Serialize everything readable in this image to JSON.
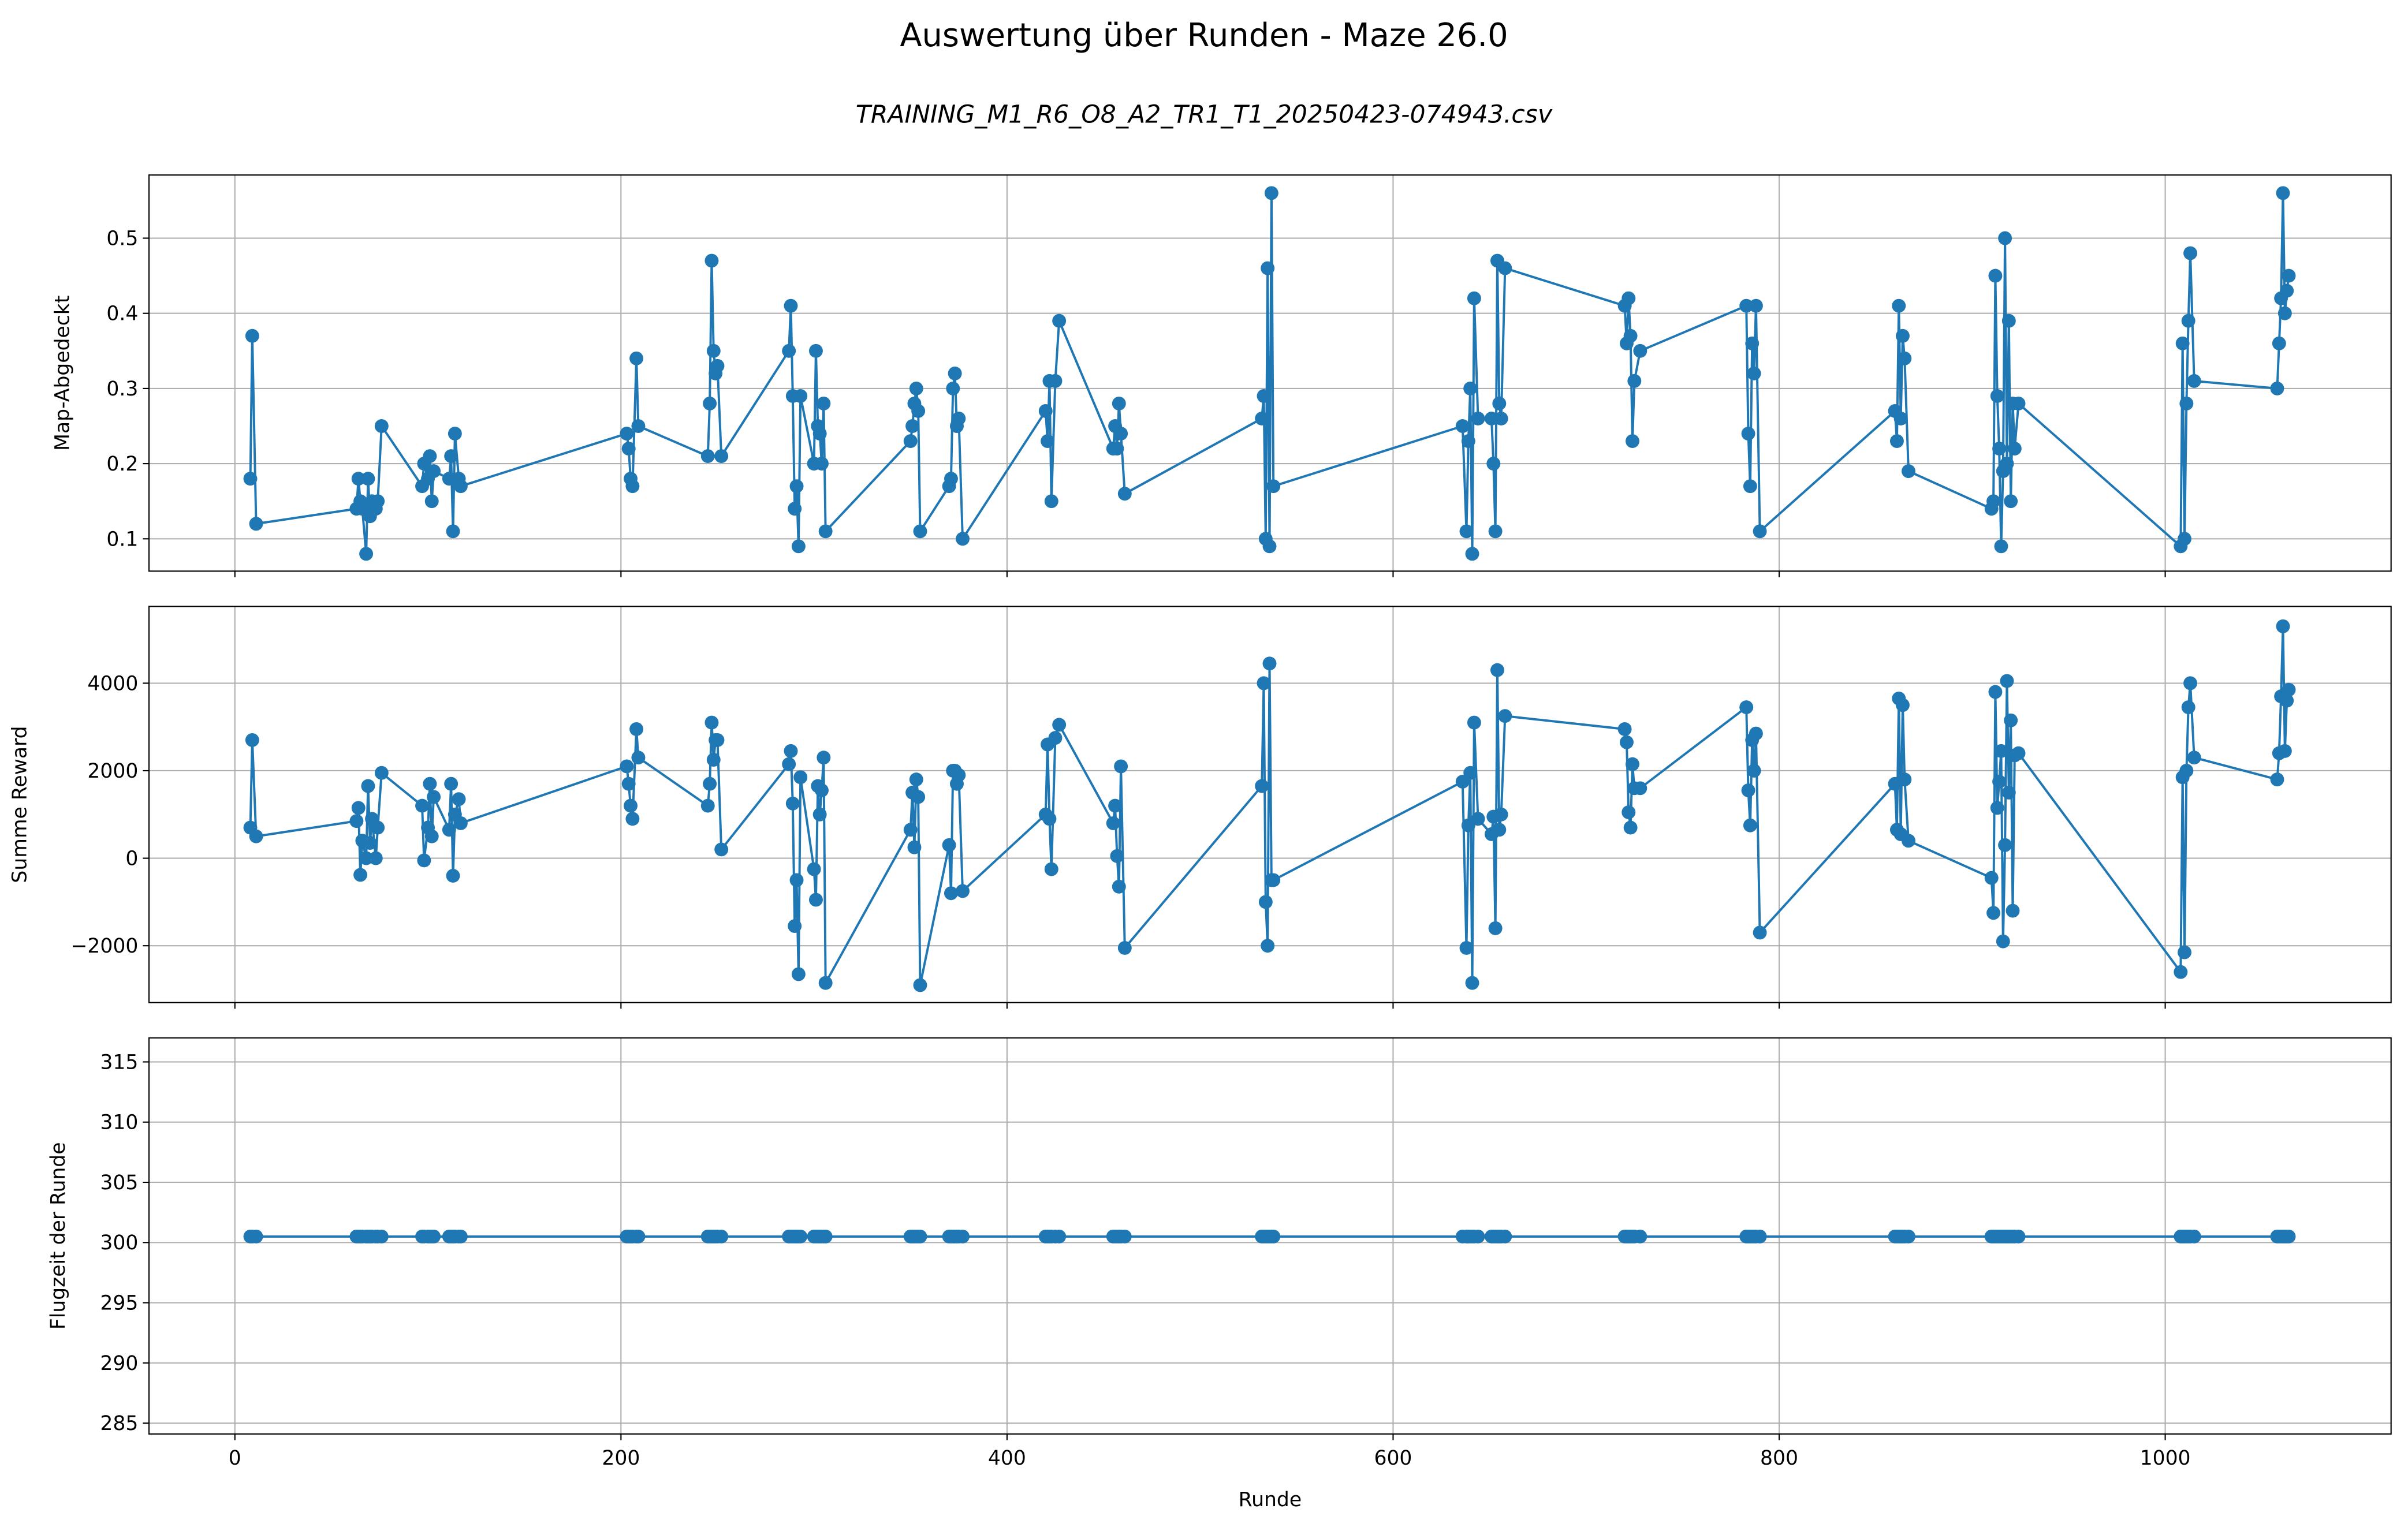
{
  "title": "Auswertung über Runden - Maze 26.0",
  "subtitle": "TRAINING_M1_R6_O8_A2_TR1_T1_20250423-074943.csv",
  "chart_data": [
    {
      "type": "line",
      "ylabel": "Map-Abgedeckt",
      "x": [
        8,
        9,
        11,
        63,
        64,
        65,
        66,
        68,
        69,
        70,
        71,
        73,
        74,
        76,
        97,
        98,
        100,
        101,
        102,
        103,
        111,
        112,
        113,
        114,
        116,
        117,
        203,
        204,
        205,
        206,
        208,
        209,
        245,
        246,
        247,
        248,
        249,
        250,
        252,
        287,
        288,
        289,
        290,
        291,
        292,
        293,
        300,
        301,
        302,
        303,
        304,
        305,
        306,
        350,
        351,
        352,
        353,
        354,
        355,
        370,
        371,
        372,
        373,
        374,
        375,
        377,
        420,
        421,
        422,
        423,
        425,
        427,
        455,
        456,
        457,
        458,
        459,
        461,
        532,
        533,
        534,
        535,
        536,
        537,
        538,
        636,
        638,
        639,
        640,
        641,
        642,
        644,
        651,
        652,
        653,
        654,
        655,
        656,
        658,
        720,
        721,
        722,
        723,
        724,
        725,
        728,
        783,
        784,
        785,
        786,
        787,
        788,
        790,
        860,
        861,
        862,
        863,
        864,
        865,
        867,
        910,
        911,
        912,
        913,
        914,
        915,
        916,
        917,
        918,
        919,
        920,
        921,
        922,
        924,
        1008,
        1009,
        1010,
        1011,
        1012,
        1013,
        1015,
        1058,
        1059,
        1060,
        1061,
        1062,
        1063,
        1064
      ],
      "series": [
        {
          "color": "#1f77b4",
          "values": [
            0.18,
            0.37,
            0.12,
            0.14,
            0.18,
            0.15,
            0.14,
            0.08,
            0.18,
            0.13,
            0.15,
            0.14,
            0.15,
            0.25,
            0.17,
            0.2,
            0.18,
            0.21,
            0.15,
            0.19,
            0.18,
            0.21,
            0.11,
            0.24,
            0.18,
            0.17,
            0.24,
            0.22,
            0.18,
            0.17,
            0.34,
            0.25,
            0.21,
            0.28,
            0.47,
            0.35,
            0.32,
            0.33,
            0.21,
            0.35,
            0.41,
            0.29,
            0.14,
            0.17,
            0.09,
            0.29,
            0.2,
            0.35,
            0.25,
            0.24,
            0.2,
            0.28,
            0.11,
            0.23,
            0.25,
            0.28,
            0.3,
            0.27,
            0.11,
            0.17,
            0.18,
            0.3,
            0.32,
            0.25,
            0.26,
            0.1,
            0.27,
            0.23,
            0.31,
            0.15,
            0.31,
            0.39,
            0.22,
            0.25,
            0.22,
            0.28,
            0.24,
            0.16,
            0.26,
            0.29,
            0.1,
            0.46,
            0.09,
            0.56,
            0.17,
            0.25,
            0.11,
            0.23,
            0.3,
            0.08,
            0.42,
            0.26,
            0.26,
            0.2,
            0.11,
            0.47,
            0.28,
            0.26,
            0.46,
            0.41,
            0.36,
            0.42,
            0.37,
            0.23,
            0.31,
            0.35,
            0.41,
            0.24,
            0.17,
            0.36,
            0.32,
            0.41,
            0.11,
            0.27,
            0.23,
            0.41,
            0.26,
            0.37,
            0.34,
            0.19,
            0.14,
            0.15,
            0.45,
            0.29,
            0.22,
            0.09,
            0.19,
            0.5,
            0.2,
            0.39,
            0.15,
            0.28,
            0.22,
            0.28,
            0.09,
            0.36,
            0.1,
            0.28,
            0.39,
            0.48,
            0.31,
            0.3,
            0.36,
            0.42,
            0.56,
            0.4,
            0.43,
            0.45
          ]
        }
      ],
      "xlim": [
        -44.5,
        1117
      ],
      "ylim": [
        0.057,
        0.584
      ],
      "yticks": [
        0.1,
        0.2,
        0.3,
        0.4,
        0.5
      ],
      "grid": true
    },
    {
      "type": "line",
      "ylabel": "Summe Reward",
      "x": [
        8,
        9,
        11,
        63,
        64,
        65,
        66,
        68,
        69,
        70,
        71,
        73,
        74,
        76,
        97,
        98,
        100,
        101,
        102,
        103,
        111,
        112,
        113,
        114,
        116,
        117,
        203,
        204,
        205,
        206,
        208,
        209,
        245,
        246,
        247,
        248,
        249,
        250,
        252,
        287,
        288,
        289,
        290,
        291,
        292,
        293,
        300,
        301,
        302,
        303,
        304,
        305,
        306,
        350,
        351,
        352,
        353,
        354,
        355,
        370,
        371,
        372,
        373,
        374,
        375,
        377,
        420,
        421,
        422,
        423,
        425,
        427,
        455,
        456,
        457,
        458,
        459,
        461,
        532,
        533,
        534,
        535,
        536,
        537,
        538,
        636,
        638,
        639,
        640,
        641,
        642,
        644,
        651,
        652,
        653,
        654,
        655,
        656,
        658,
        720,
        721,
        722,
        723,
        724,
        725,
        728,
        783,
        784,
        785,
        786,
        787,
        788,
        790,
        860,
        861,
        862,
        863,
        864,
        865,
        867,
        910,
        911,
        912,
        913,
        914,
        915,
        916,
        917,
        918,
        919,
        920,
        921,
        922,
        924,
        1008,
        1009,
        1010,
        1011,
        1012,
        1013,
        1015,
        1058,
        1059,
        1060,
        1061,
        1062,
        1063,
        1064
      ],
      "series": [
        {
          "color": "#1f77b4",
          "values": [
            700,
            2700,
            500,
            850,
            1150,
            -380,
            400,
            0,
            1650,
            350,
            900,
            0,
            700,
            1950,
            1200,
            -50,
            700,
            1700,
            500,
            1400,
            650,
            1700,
            -400,
            1000,
            1350,
            800,
            2100,
            1700,
            1200,
            900,
            2950,
            2300,
            1200,
            1700,
            3100,
            2250,
            2700,
            2700,
            200,
            2150,
            2450,
            1250,
            -1550,
            -500,
            -2650,
            1850,
            -250,
            -950,
            1650,
            1000,
            1550,
            2300,
            -2850,
            650,
            1500,
            250,
            1800,
            1400,
            -2900,
            300,
            -800,
            2000,
            2000,
            1700,
            1900,
            -750,
            1000,
            2600,
            900,
            -250,
            2750,
            3050,
            800,
            1200,
            50,
            -650,
            2100,
            -2050,
            1650,
            4000,
            -1000,
            -2000,
            4450,
            -500,
            -500,
            1750,
            -2050,
            750,
            1950,
            -2850,
            3100,
            900,
            550,
            950,
            -1600,
            4300,
            650,
            1000,
            3250,
            2950,
            2650,
            1050,
            700,
            2150,
            1600,
            1600,
            3450,
            1550,
            750,
            2700,
            2000,
            2850,
            -1700,
            1700,
            650,
            3650,
            550,
            3500,
            1800,
            400,
            -450,
            -1250,
            3800,
            1150,
            1750,
            2450,
            -1900,
            300,
            4050,
            1500,
            3150,
            -1200,
            2350,
            2400,
            -2600,
            1850,
            -2150,
            2000,
            3450,
            4000,
            2300,
            1800,
            2400,
            3700,
            5300,
            2450,
            3600,
            3850
          ]
        }
      ],
      "xlim": [
        -44.5,
        1117
      ],
      "ylim": [
        -3298,
        5754
      ],
      "yticks": [
        {
          "value": -2000,
          "label": "−2000"
        },
        0,
        2000,
        4000
      ],
      "grid": true
    },
    {
      "type": "line",
      "ylabel": "Flugzeit der Runde",
      "xlabel": "Runde",
      "x": [
        8,
        9,
        11,
        63,
        64,
        65,
        66,
        68,
        69,
        70,
        71,
        73,
        74,
        76,
        97,
        98,
        100,
        101,
        102,
        103,
        111,
        112,
        113,
        114,
        116,
        117,
        203,
        204,
        205,
        206,
        208,
        209,
        245,
        246,
        247,
        248,
        249,
        250,
        252,
        287,
        288,
        289,
        290,
        291,
        292,
        293,
        300,
        301,
        302,
        303,
        304,
        305,
        306,
        350,
        351,
        352,
        353,
        354,
        355,
        370,
        371,
        372,
        373,
        374,
        375,
        377,
        420,
        421,
        422,
        423,
        425,
        427,
        455,
        456,
        457,
        458,
        459,
        461,
        532,
        533,
        534,
        535,
        536,
        537,
        538,
        636,
        638,
        639,
        640,
        641,
        642,
        644,
        651,
        652,
        653,
        654,
        655,
        656,
        658,
        720,
        721,
        722,
        723,
        724,
        725,
        728,
        783,
        784,
        785,
        786,
        787,
        788,
        790,
        860,
        861,
        862,
        863,
        864,
        865,
        867,
        910,
        911,
        912,
        913,
        914,
        915,
        916,
        917,
        918,
        919,
        920,
        921,
        922,
        924,
        1008,
        1009,
        1010,
        1011,
        1012,
        1013,
        1015,
        1058,
        1059,
        1060,
        1061,
        1062,
        1063,
        1064
      ],
      "series": [
        {
          "color": "#1f77b4",
          "values": [
            300.5,
            300.5,
            300.5,
            300.5,
            300.5,
            300.5,
            300.5,
            300.5,
            300.5,
            300.5,
            300.5,
            300.5,
            300.5,
            300.5,
            300.5,
            300.5,
            300.5,
            300.5,
            300.5,
            300.5,
            300.5,
            300.5,
            300.5,
            300.5,
            300.5,
            300.5,
            300.5,
            300.5,
            300.5,
            300.5,
            300.5,
            300.5,
            300.5,
            300.5,
            300.5,
            300.5,
            300.5,
            300.5,
            300.5,
            300.5,
            300.5,
            300.5,
            300.5,
            300.5,
            300.5,
            300.5,
            300.5,
            300.5,
            300.5,
            300.5,
            300.5,
            300.5,
            300.5,
            300.5,
            300.5,
            300.5,
            300.5,
            300.5,
            300.5,
            300.5,
            300.5,
            300.5,
            300.5,
            300.5,
            300.5,
            300.5,
            300.5,
            300.5,
            300.5,
            300.5,
            300.5,
            300.5,
            300.5,
            300.5,
            300.5,
            300.5,
            300.5,
            300.5,
            300.5,
            300.5,
            300.5,
            300.5,
            300.5,
            300.5,
            300.5,
            300.5,
            300.5,
            300.5,
            300.5,
            300.5,
            300.5,
            300.5,
            300.5,
            300.5,
            300.5,
            300.5,
            300.5,
            300.5,
            300.5,
            300.5,
            300.5,
            300.5,
            300.5,
            300.5,
            300.5,
            300.5,
            300.5,
            300.5,
            300.5,
            300.5,
            300.5,
            300.5,
            300.5,
            300.5,
            300.5,
            300.5,
            300.5,
            300.5,
            300.5,
            300.5,
            300.5,
            300.5,
            300.5,
            300.5,
            300.5,
            300.5,
            300.5,
            300.5,
            300.5,
            300.5,
            300.5,
            300.5,
            300.5,
            300.5,
            300.5,
            300.5,
            300.5,
            300.5,
            300.5,
            300.5,
            300.5,
            300.5,
            300.5,
            300.5,
            300.5,
            300.5,
            300.5,
            300.5
          ]
        }
      ],
      "xlim": [
        -44.5,
        1117
      ],
      "xticks": [
        0,
        200,
        400,
        600,
        800,
        1000
      ],
      "ylim": [
        284.1,
        317
      ],
      "yticks": [
        285,
        290,
        295,
        300,
        305,
        310,
        315
      ],
      "grid": true
    }
  ]
}
